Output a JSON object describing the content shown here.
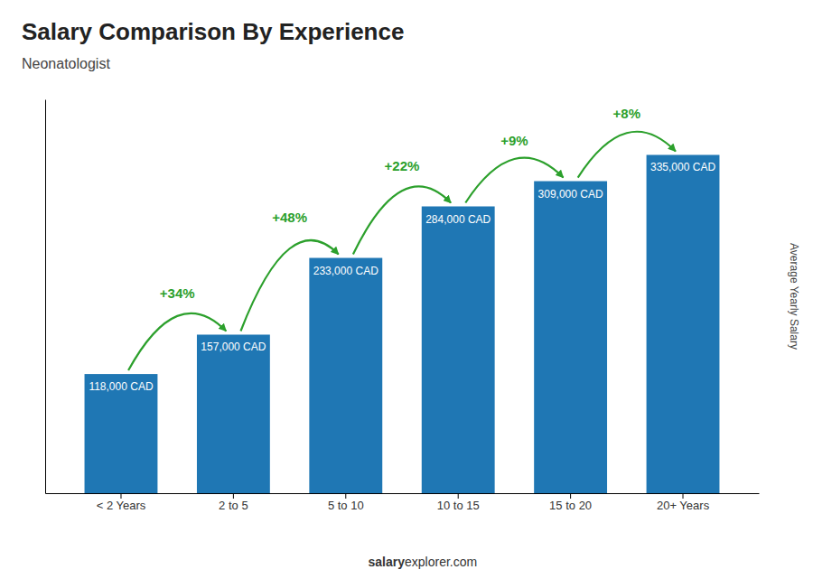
{
  "chart_data": {
    "type": "bar",
    "title": "Salary Comparison By Experience",
    "subtitle": "Neonatologist",
    "ylabel": "Average Yearly Salary",
    "categories": [
      "< 2 Years",
      "2 to 5",
      "5 to 10",
      "10 to 15",
      "15 to 20",
      "20+ Years"
    ],
    "values": [
      118000,
      157000,
      233000,
      284000,
      309000,
      335000
    ],
    "value_labels": [
      "118,000 CAD",
      "157,000 CAD",
      "233,000 CAD",
      "284,000 CAD",
      "309,000 CAD",
      "335,000 CAD"
    ],
    "data_labels": true,
    "annotations": [
      "+34%",
      "+48%",
      "+22%",
      "+9%",
      "+8%"
    ],
    "footer": [
      "salary",
      "explorer.com"
    ],
    "ylim": [
      0,
      390000
    ],
    "tick_labels": "x",
    "grid": false
  }
}
